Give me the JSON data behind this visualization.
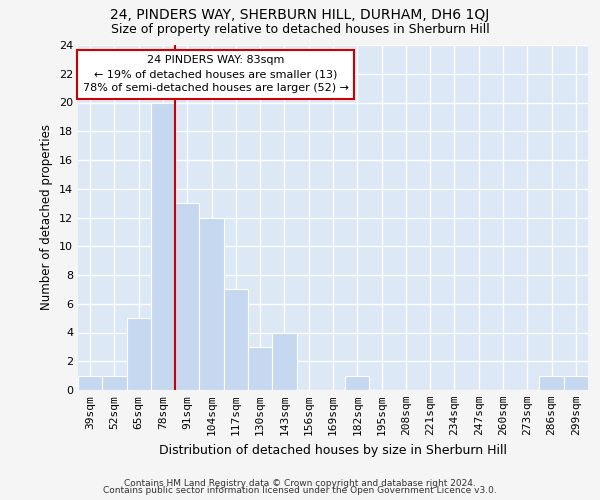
{
  "title1": "24, PINDERS WAY, SHERBURN HILL, DURHAM, DH6 1QJ",
  "title2": "Size of property relative to detached houses in Sherburn Hill",
  "xlabel": "Distribution of detached houses by size in Sherburn Hill",
  "ylabel": "Number of detached properties",
  "categories": [
    "39sqm",
    "52sqm",
    "65sqm",
    "78sqm",
    "91sqm",
    "104sqm",
    "117sqm",
    "130sqm",
    "143sqm",
    "156sqm",
    "169sqm",
    "182sqm",
    "195sqm",
    "208sqm",
    "221sqm",
    "234sqm",
    "247sqm",
    "260sqm",
    "273sqm",
    "286sqm",
    "299sqm"
  ],
  "values": [
    1,
    1,
    5,
    20,
    13,
    12,
    7,
    3,
    4,
    0,
    0,
    1,
    0,
    0,
    0,
    0,
    0,
    0,
    0,
    1,
    1
  ],
  "bar_color": "#c5d8f0",
  "bar_edge_color": "#ffffff",
  "bar_edge_width": 0.8,
  "vline_x": 3.5,
  "vline_color": "#cc0000",
  "annotation_line1": "24 PINDERS WAY: 83sqm",
  "annotation_line2": "← 19% of detached houses are smaller (13)",
  "annotation_line3": "78% of semi-detached houses are larger (52) →",
  "annotation_box_color": "#ffffff",
  "annotation_box_edge": "#cc0000",
  "ylim": [
    0,
    24
  ],
  "yticks": [
    0,
    2,
    4,
    6,
    8,
    10,
    12,
    14,
    16,
    18,
    20,
    22,
    24
  ],
  "background_color": "#dce8f5",
  "grid_color": "#ffffff",
  "fig_background": "#f5f5f5",
  "footer1": "Contains HM Land Registry data © Crown copyright and database right 2024.",
  "footer2": "Contains public sector information licensed under the Open Government Licence v3.0.",
  "title1_fontsize": 10,
  "title2_fontsize": 9,
  "xlabel_fontsize": 9,
  "ylabel_fontsize": 8.5,
  "tick_fontsize": 8,
  "footer_fontsize": 6.5
}
